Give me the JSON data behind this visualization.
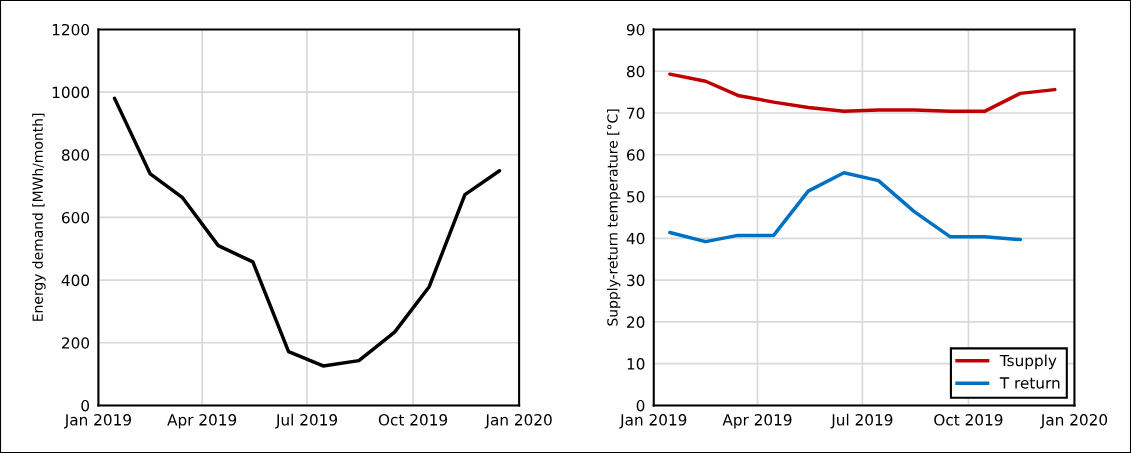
{
  "chart_data": [
    {
      "type": "line",
      "ylabel": "Energy demand [MWh/month]",
      "x": [
        "2019-01-15",
        "2019-02-15",
        "2019-03-15",
        "2019-04-15",
        "2019-05-15",
        "2019-06-15",
        "2019-07-15",
        "2019-08-15",
        "2019-09-15",
        "2019-10-15",
        "2019-11-15",
        "2019-12-15"
      ],
      "series": [
        {
          "color": "#000000",
          "values": [
            980,
            739,
            663,
            510,
            458,
            172,
            126,
            143,
            234,
            379,
            673,
            749
          ]
        }
      ],
      "xlim": [
        "2019-01-01",
        "2020-01-01"
      ],
      "xticks": [
        {
          "value": "2019-01-01",
          "label": "Jan 2019"
        },
        {
          "value": "2019-04-01",
          "label": "Apr 2019"
        },
        {
          "value": "2019-07-01",
          "label": "Jul 2019"
        },
        {
          "value": "2019-10-01",
          "label": "Oct 2019"
        },
        {
          "value": "2020-01-01",
          "label": "Jan 2020"
        }
      ],
      "ylim": [
        0,
        1200
      ],
      "yticks": [
        0,
        200,
        400,
        600,
        800,
        1000,
        1200
      ],
      "grid": true,
      "marker": "none",
      "line_style": "solid",
      "legend": false
    },
    {
      "type": "line",
      "ylabel": "Supply-return temperature [°C]",
      "x": [
        "2019-01-15",
        "2019-02-15",
        "2019-03-15",
        "2019-04-15",
        "2019-05-15",
        "2019-06-15",
        "2019-07-15",
        "2019-08-15",
        "2019-09-15",
        "2019-10-15",
        "2019-11-15",
        "2019-12-15"
      ],
      "series": [
        {
          "name": "Tsupply",
          "color": "#c00000",
          "values": [
            79.3,
            77.6,
            74.2,
            72.6,
            71.3,
            70.4,
            70.7,
            70.7,
            70.4,
            70.4,
            74.7,
            75.6
          ]
        },
        {
          "name": "T return",
          "color": "#0070c0",
          "values": [
            41.4,
            39.2,
            40.7,
            40.7,
            51.3,
            55.7,
            53.8,
            46.4,
            40.4,
            40.4,
            39.7,
            null
          ]
        }
      ],
      "xlim": [
        "2019-01-01",
        "2020-01-01"
      ],
      "xticks": [
        {
          "value": "2019-01-01",
          "label": "Jan 2019"
        },
        {
          "value": "2019-04-01",
          "label": "Apr 2019"
        },
        {
          "value": "2019-07-01",
          "label": "Jul 2019"
        },
        {
          "value": "2019-10-01",
          "label": "Oct 2019"
        },
        {
          "value": "2020-01-01",
          "label": "Jan 2020"
        }
      ],
      "ylim": [
        0,
        90
      ],
      "yticks": [
        0,
        10,
        20,
        30,
        40,
        50,
        60,
        70,
        80,
        90
      ],
      "grid": true,
      "marker": "none",
      "line_style": "solid",
      "legend": "bottom right"
    }
  ]
}
